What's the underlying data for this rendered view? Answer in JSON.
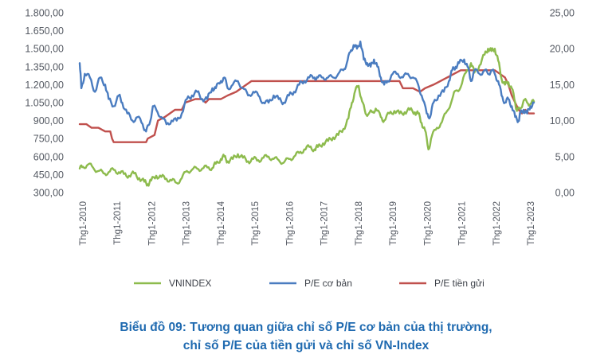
{
  "caption": {
    "line1": "Biểu đồ 09: Tương quan giữa chỉ số P/E cơ bản của thị trường,",
    "line2": "chỉ số P/E của tiền gửi và chỉ số VN-Index"
  },
  "chart_data": {
    "type": "line",
    "title": "Biểu đồ 09: Tương quan giữa chỉ số P/E cơ bản của thị trường, chỉ số P/E của tiền gửi và chỉ số VN-Index",
    "x_tick_labels": [
      "Thg1-2010",
      "Thg1-2011",
      "Thg1-2012",
      "Thg1-2013",
      "Thg1-2014",
      "Thg1-2015",
      "Thg1-2016",
      "Thg1-2017",
      "Thg1-2018",
      "Thg1-2019",
      "Thg1-2020",
      "Thg1-2021",
      "Thg1-2022",
      "Thg1-2023"
    ],
    "x_range": [
      2010.0,
      2023.35
    ],
    "left_axis": {
      "ticks": [
        "300,00",
        "450,00",
        "600,00",
        "750,00",
        "900,00",
        "1.050,00",
        "1.200,00",
        "1.350,00",
        "1.500,00",
        "1.650,00",
        "1.800,00"
      ],
      "range": [
        300,
        1800
      ]
    },
    "right_axis": {
      "ticks": [
        "0,00",
        "5,00",
        "10,00",
        "15,00",
        "20,00",
        "25,00"
      ],
      "range": [
        0,
        25
      ]
    },
    "legend_position": "bottom",
    "grid": false,
    "series": [
      {
        "name": "VNINDEX",
        "axis": "left",
        "color": "#8dbb4d",
        "points": [
          [
            2010.0,
            500
          ],
          [
            2010.1,
            515
          ],
          [
            2010.25,
            535
          ],
          [
            2010.4,
            505
          ],
          [
            2010.55,
            480
          ],
          [
            2010.7,
            460
          ],
          [
            2010.85,
            470
          ],
          [
            2011.0,
            490
          ],
          [
            2011.15,
            470
          ],
          [
            2011.3,
            455
          ],
          [
            2011.45,
            440
          ],
          [
            2011.6,
            460
          ],
          [
            2011.75,
            420
          ],
          [
            2011.9,
            390
          ],
          [
            2012.0,
            370
          ],
          [
            2012.1,
            400
          ],
          [
            2012.25,
            440
          ],
          [
            2012.4,
            430
          ],
          [
            2012.55,
            415
          ],
          [
            2012.7,
            400
          ],
          [
            2012.85,
            380
          ],
          [
            2013.0,
            420
          ],
          [
            2013.15,
            480
          ],
          [
            2013.3,
            490
          ],
          [
            2013.45,
            500
          ],
          [
            2013.6,
            500
          ],
          [
            2013.75,
            510
          ],
          [
            2013.9,
            505
          ],
          [
            2014.0,
            540
          ],
          [
            2014.15,
            580
          ],
          [
            2014.25,
            600
          ],
          [
            2014.35,
            560
          ],
          [
            2014.5,
            580
          ],
          [
            2014.65,
            620
          ],
          [
            2014.8,
            590
          ],
          [
            2014.95,
            560
          ],
          [
            2015.1,
            580
          ],
          [
            2015.25,
            570
          ],
          [
            2015.4,
            590
          ],
          [
            2015.55,
            600
          ],
          [
            2015.7,
            580
          ],
          [
            2015.85,
            570
          ],
          [
            2016.0,
            550
          ],
          [
            2016.15,
            580
          ],
          [
            2016.3,
            600
          ],
          [
            2016.45,
            630
          ],
          [
            2016.6,
            660
          ],
          [
            2016.75,
            680
          ],
          [
            2016.9,
            660
          ],
          [
            2017.0,
            680
          ],
          [
            2017.15,
            710
          ],
          [
            2017.3,
            730
          ],
          [
            2017.45,
            760
          ],
          [
            2017.6,
            780
          ],
          [
            2017.75,
            830
          ],
          [
            2017.9,
            920
          ],
          [
            2018.0,
            1050
          ],
          [
            2018.1,
            1150
          ],
          [
            2018.2,
            1190
          ],
          [
            2018.3,
            1060
          ],
          [
            2018.4,
            960
          ],
          [
            2018.5,
            960
          ],
          [
            2018.6,
            970
          ],
          [
            2018.7,
            1000
          ],
          [
            2018.85,
            930
          ],
          [
            2018.95,
            900
          ],
          [
            2019.1,
            960
          ],
          [
            2019.25,
            980
          ],
          [
            2019.4,
            960
          ],
          [
            2019.55,
            970
          ],
          [
            2019.7,
            990
          ],
          [
            2019.85,
            970
          ],
          [
            2019.95,
            960
          ],
          [
            2020.05,
            880
          ],
          [
            2020.15,
            820
          ],
          [
            2020.25,
            660
          ],
          [
            2020.35,
            770
          ],
          [
            2020.5,
            840
          ],
          [
            2020.65,
            890
          ],
          [
            2020.8,
            980
          ],
          [
            2020.95,
            1080
          ],
          [
            2021.05,
            1150
          ],
          [
            2021.2,
            1180
          ],
          [
            2021.35,
            1300
          ],
          [
            2021.5,
            1380
          ],
          [
            2021.6,
            1300
          ],
          [
            2021.75,
            1360
          ],
          [
            2021.9,
            1450
          ],
          [
            2022.0,
            1500
          ],
          [
            2022.1,
            1480
          ],
          [
            2022.2,
            1500
          ],
          [
            2022.3,
            1400
          ],
          [
            2022.4,
            1250
          ],
          [
            2022.5,
            1200
          ],
          [
            2022.6,
            1220
          ],
          [
            2022.7,
            1170
          ],
          [
            2022.8,
            1050
          ],
          [
            2022.85,
            980
          ],
          [
            2022.95,
            1000
          ],
          [
            2023.05,
            1070
          ],
          [
            2023.15,
            1050
          ],
          [
            2023.25,
            1040
          ],
          [
            2023.35,
            1060
          ]
        ]
      },
      {
        "name": "P/E cơ bản",
        "axis": "right",
        "color": "#4a7cc0",
        "points": [
          [
            2010.0,
            18.0
          ],
          [
            2010.05,
            14.5
          ],
          [
            2010.15,
            16.5
          ],
          [
            2010.3,
            16.0
          ],
          [
            2010.45,
            14.0
          ],
          [
            2010.6,
            16.0
          ],
          [
            2010.75,
            15.0
          ],
          [
            2010.85,
            13.0
          ],
          [
            2011.0,
            12.0
          ],
          [
            2011.15,
            13.5
          ],
          [
            2011.25,
            12.5
          ],
          [
            2011.4,
            11.0
          ],
          [
            2011.55,
            10.0
          ],
          [
            2011.7,
            10.5
          ],
          [
            2011.85,
            9.5
          ],
          [
            2011.95,
            8.5
          ],
          [
            2012.05,
            9.5
          ],
          [
            2012.15,
            12.0
          ],
          [
            2012.25,
            11.5
          ],
          [
            2012.4,
            10.5
          ],
          [
            2012.55,
            9.5
          ],
          [
            2012.7,
            10.0
          ],
          [
            2012.85,
            10.0
          ],
          [
            2013.0,
            11.0
          ],
          [
            2013.15,
            13.0
          ],
          [
            2013.3,
            13.5
          ],
          [
            2013.45,
            14.0
          ],
          [
            2013.6,
            13.0
          ],
          [
            2013.75,
            13.0
          ],
          [
            2013.9,
            14.5
          ],
          [
            2014.0,
            14.5
          ],
          [
            2014.15,
            15.5
          ],
          [
            2014.25,
            16.0
          ],
          [
            2014.35,
            14.5
          ],
          [
            2014.5,
            15.0
          ],
          [
            2014.65,
            15.5
          ],
          [
            2014.8,
            14.5
          ],
          [
            2014.95,
            13.5
          ],
          [
            2015.1,
            14.0
          ],
          [
            2015.25,
            13.5
          ],
          [
            2015.4,
            12.5
          ],
          [
            2015.55,
            12.5
          ],
          [
            2015.7,
            13.5
          ],
          [
            2015.85,
            13.0
          ],
          [
            2016.0,
            12.5
          ],
          [
            2016.15,
            13.5
          ],
          [
            2016.3,
            14.0
          ],
          [
            2016.45,
            15.0
          ],
          [
            2016.6,
            15.5
          ],
          [
            2016.75,
            16.0
          ],
          [
            2016.9,
            16.0
          ],
          [
            2017.0,
            16.0
          ],
          [
            2017.15,
            16.0
          ],
          [
            2017.3,
            16.0
          ],
          [
            2017.45,
            16.0
          ],
          [
            2017.6,
            16.5
          ],
          [
            2017.75,
            17.0
          ],
          [
            2017.85,
            18.0
          ],
          [
            2017.95,
            19.5
          ],
          [
            2018.05,
            20.5
          ],
          [
            2018.15,
            20.0
          ],
          [
            2018.25,
            21.0
          ],
          [
            2018.35,
            18.5
          ],
          [
            2018.45,
            18.0
          ],
          [
            2018.55,
            17.5
          ],
          [
            2018.65,
            18.5
          ],
          [
            2018.75,
            17.5
          ],
          [
            2018.85,
            16.0
          ],
          [
            2018.95,
            15.0
          ],
          [
            2019.05,
            15.5
          ],
          [
            2019.2,
            16.5
          ],
          [
            2019.35,
            16.5
          ],
          [
            2019.5,
            16.0
          ],
          [
            2019.65,
            16.5
          ],
          [
            2019.8,
            16.0
          ],
          [
            2019.95,
            15.0
          ],
          [
            2020.05,
            13.5
          ],
          [
            2020.2,
            11.0
          ],
          [
            2020.3,
            10.5
          ],
          [
            2020.4,
            12.5
          ],
          [
            2020.55,
            13.5
          ],
          [
            2020.7,
            14.0
          ],
          [
            2020.85,
            15.5
          ],
          [
            2020.95,
            17.0
          ],
          [
            2021.05,
            17.5
          ],
          [
            2021.15,
            18.0
          ],
          [
            2021.3,
            18.5
          ],
          [
            2021.4,
            17.5
          ],
          [
            2021.5,
            15.5
          ],
          [
            2021.6,
            17.0
          ],
          [
            2021.75,
            16.5
          ],
          [
            2021.9,
            17.0
          ],
          [
            2022.0,
            16.5
          ],
          [
            2022.1,
            17.0
          ],
          [
            2022.2,
            16.5
          ],
          [
            2022.3,
            15.5
          ],
          [
            2022.4,
            13.5
          ],
          [
            2022.5,
            12.5
          ],
          [
            2022.6,
            13.0
          ],
          [
            2022.7,
            12.0
          ],
          [
            2022.8,
            10.5
          ],
          [
            2022.9,
            10.0
          ],
          [
            2022.95,
            11.0
          ],
          [
            2023.05,
            11.5
          ],
          [
            2023.15,
            11.0
          ],
          [
            2023.25,
            12.0
          ],
          [
            2023.35,
            12.5
          ]
        ]
      },
      {
        "name": "P/E tiền gửi",
        "axis": "right",
        "color": "#c0504d",
        "points": [
          [
            2010.0,
            9.5
          ],
          [
            2010.2,
            9.5
          ],
          [
            2010.35,
            9.0
          ],
          [
            2010.55,
            9.0
          ],
          [
            2010.75,
            8.5
          ],
          [
            2010.9,
            8.5
          ],
          [
            2010.95,
            7.5
          ],
          [
            2011.0,
            7.0
          ],
          [
            2011.95,
            7.0
          ],
          [
            2012.0,
            7.5
          ],
          [
            2012.2,
            8.0
          ],
          [
            2012.3,
            10.0
          ],
          [
            2012.5,
            10.5
          ],
          [
            2012.65,
            11.0
          ],
          [
            2012.8,
            11.5
          ],
          [
            2013.0,
            11.5
          ],
          [
            2013.1,
            12.5
          ],
          [
            2013.4,
            13.0
          ],
          [
            2013.6,
            13.0
          ],
          [
            2013.7,
            12.5
          ],
          [
            2013.8,
            13.0
          ],
          [
            2014.15,
            13.0
          ],
          [
            2014.35,
            13.5
          ],
          [
            2014.6,
            14.0
          ],
          [
            2014.75,
            14.5
          ],
          [
            2014.9,
            15.0
          ],
          [
            2015.05,
            15.5
          ],
          [
            2016.5,
            15.5
          ],
          [
            2017.9,
            15.5
          ],
          [
            2018.0,
            15.5
          ],
          [
            2019.1,
            15.5
          ],
          [
            2019.4,
            15.5
          ],
          [
            2019.5,
            14.5
          ],
          [
            2019.8,
            14.5
          ],
          [
            2020.0,
            14.0
          ],
          [
            2020.15,
            14.5
          ],
          [
            2020.4,
            15.0
          ],
          [
            2020.6,
            15.5
          ],
          [
            2020.8,
            16.0
          ],
          [
            2021.0,
            16.5
          ],
          [
            2021.2,
            17.0
          ],
          [
            2021.5,
            17.0
          ],
          [
            2021.8,
            17.0
          ],
          [
            2022.0,
            17.0
          ],
          [
            2022.2,
            17.0
          ],
          [
            2022.35,
            16.5
          ],
          [
            2022.5,
            16.0
          ],
          [
            2022.6,
            15.0
          ],
          [
            2022.7,
            13.5
          ],
          [
            2022.8,
            12.5
          ],
          [
            2022.9,
            11.5
          ],
          [
            2023.0,
            11.0
          ],
          [
            2023.1,
            11.5
          ],
          [
            2023.2,
            11.0
          ],
          [
            2023.35,
            11.0
          ]
        ]
      }
    ]
  }
}
